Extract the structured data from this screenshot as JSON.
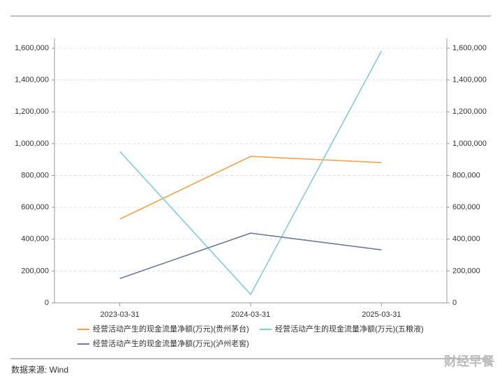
{
  "chart_data": {
    "type": "line",
    "categories": [
      "2023-03-31",
      "2024-03-31",
      "2025-03-31"
    ],
    "series": [
      {
        "name": "经营活动产生的现金流量净额(万元)(贵州茅台)",
        "color": "#f5a04a",
        "values": [
          526000,
          920000,
          881000
        ]
      },
      {
        "name": "经营活动产生的现金流量净额(万元)(五粮液)",
        "color": "#7fcfd4",
        "values": [
          951000,
          53000,
          1582000
        ]
      },
      {
        "name": "经营活动产生的现金流量净额(万元)(泸州老窖)",
        "color": "#6f7a9c",
        "values": [
          153000,
          438000,
          333000
        ]
      }
    ],
    "ylim": [
      0,
      1600000
    ],
    "yticks": [
      0,
      {
        "value": 200000,
        "label": "200,000"
      },
      {
        "value": 400000,
        "label": "400,000"
      },
      {
        "value": 600000,
        "label": "600,000"
      },
      {
        "value": 800000,
        "label": "800,000"
      },
      {
        "value": 1000000,
        "label": "1,000,000"
      },
      {
        "value": 1200000,
        "label": "1,200,000"
      },
      {
        "value": 1400000,
        "label": "1,400,000"
      },
      {
        "value": 1600000,
        "label": "1,600,000"
      }
    ],
    "y2lim": [
      0,
      1600000
    ],
    "y2ticks": [
      0,
      {
        "value": 200000,
        "label": "200,000"
      },
      {
        "value": 400000,
        "label": "400,000"
      },
      {
        "value": 600000,
        "label": "600,000"
      },
      {
        "value": 800000,
        "label": "800,000"
      },
      {
        "value": 1000000,
        "label": "1,000,000"
      },
      {
        "value": 1200000,
        "label": "1,200,000"
      },
      {
        "value": 1400000,
        "label": "1,400,000"
      },
      {
        "value": 1600000,
        "label": "1,600,000"
      }
    ],
    "grid": true
  },
  "source": "数据来源: Wind",
  "watermark": "财经早餐"
}
